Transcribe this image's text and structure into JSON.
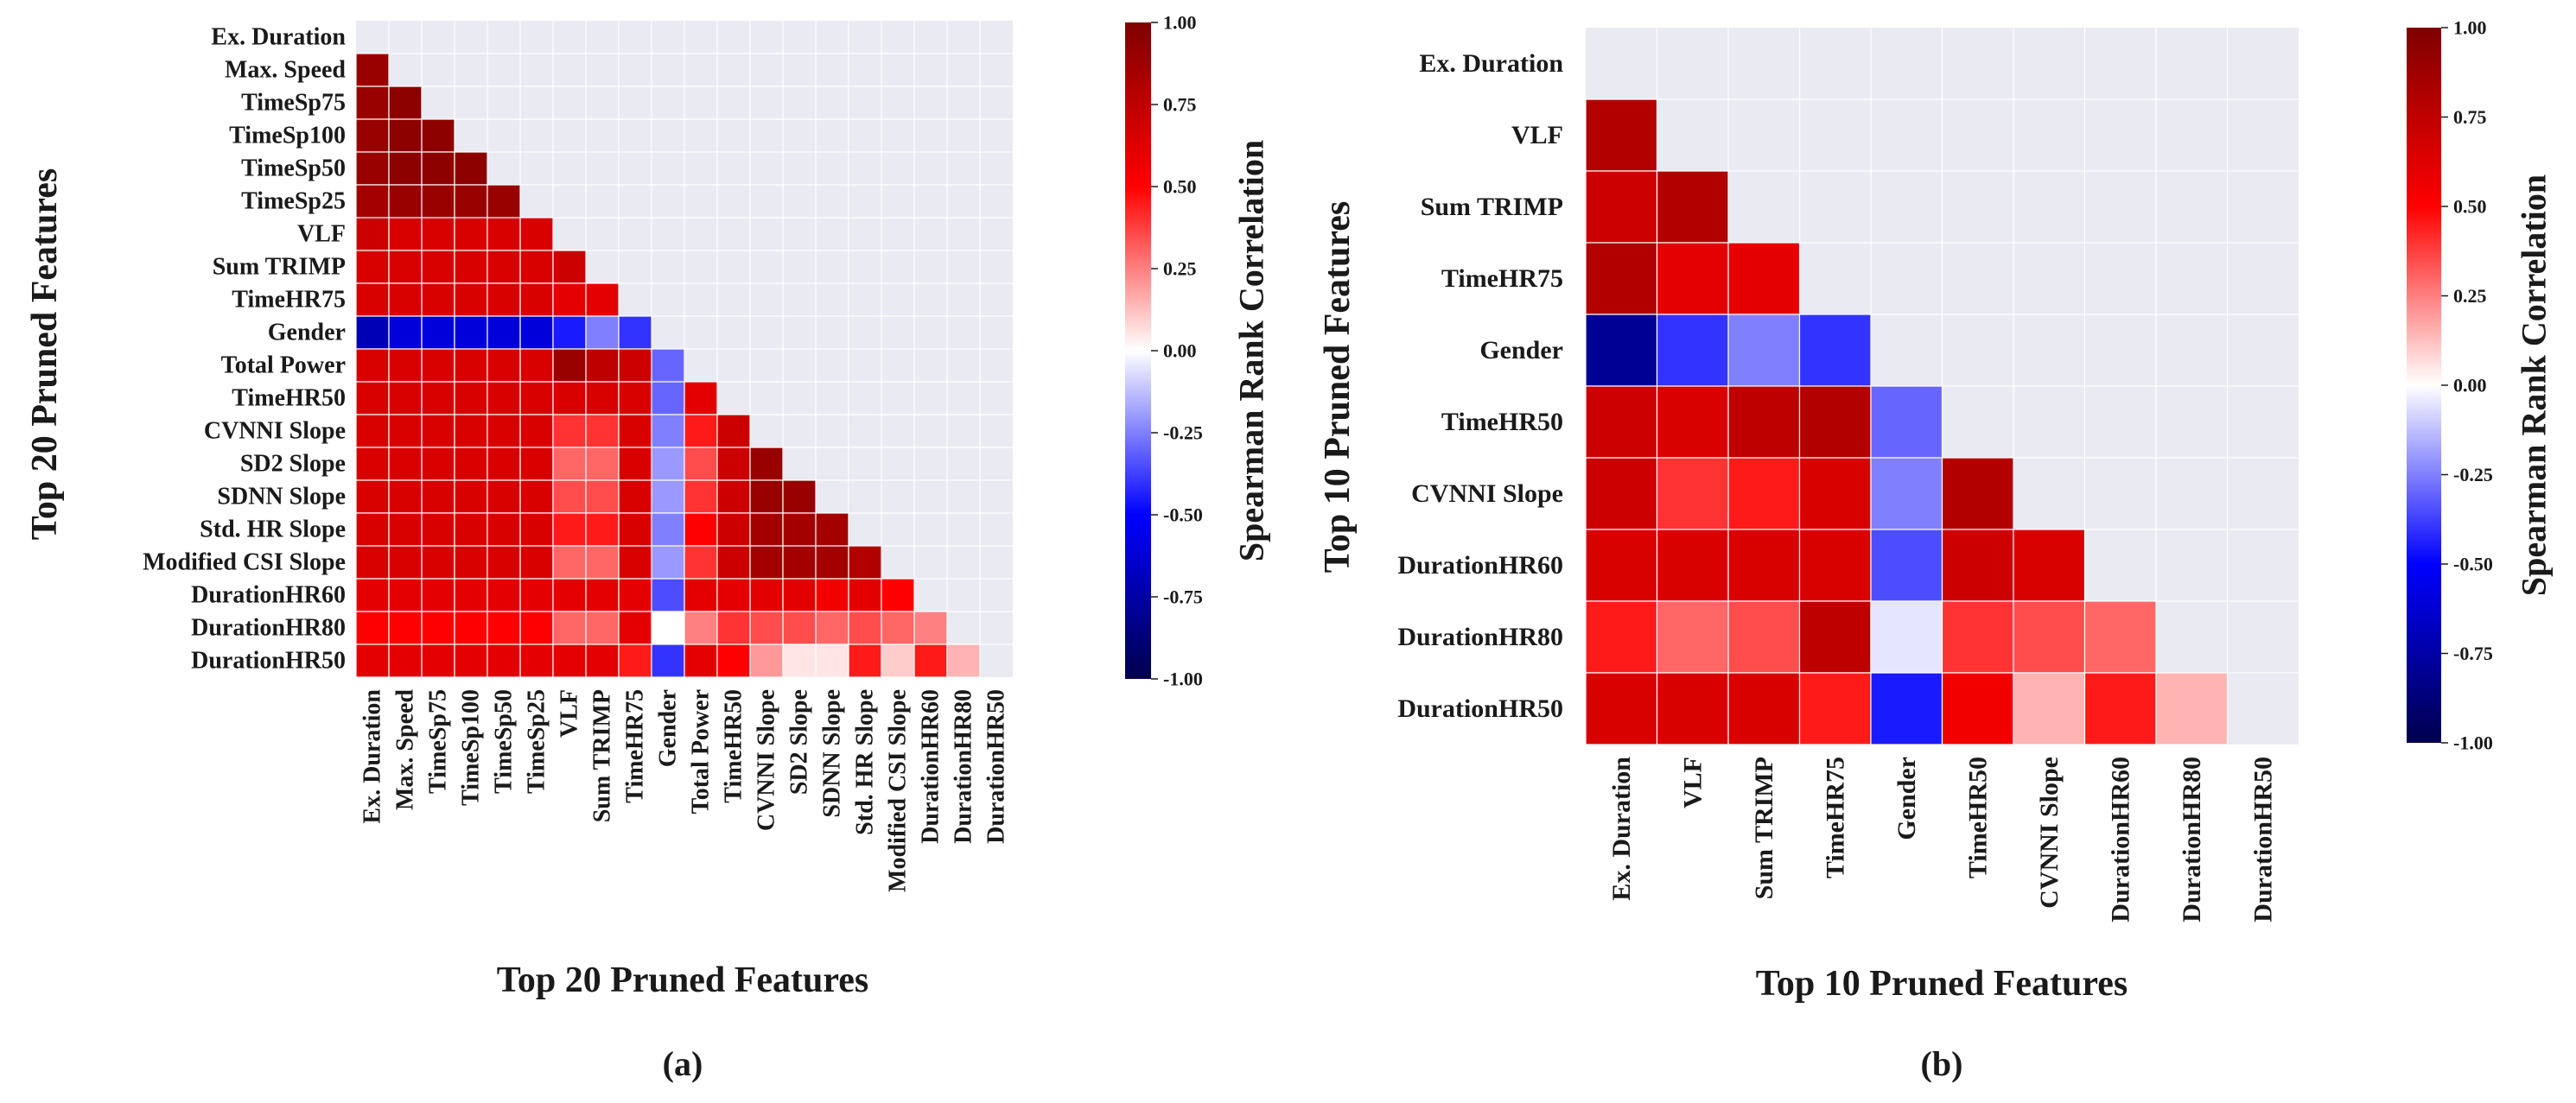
{
  "chart_data": [
    {
      "type": "heatmap",
      "panel_label": "(a)",
      "xlabel": "Top 20 Pruned Features",
      "ylabel": "Top 20 Pruned Features",
      "colorbar_label": "Spearman Rank Correlation",
      "colorbar_range": [
        -1.0,
        1.0
      ],
      "colorbar_ticks": [
        "1.00",
        "0.75",
        "0.50",
        "0.25",
        "0.00",
        "-0.25",
        "-0.50",
        "-0.75",
        "-1.00"
      ],
      "mask": "lower-triangle (diagonal hidden)",
      "features": [
        "Ex. Duration",
        "Max. Speed",
        "TimeSp75",
        "TimeSp100",
        "TimeSp50",
        "TimeSp25",
        "VLF",
        "Sum TRIMP",
        "TimeHR75",
        "Gender",
        "Total Power",
        "TimeHR50",
        "CVNNI Slope",
        "SD2 Slope",
        "SDNN Slope",
        "Std. HR Slope",
        "Modified CSI Slope",
        "DurationHR60",
        "DurationHR80",
        "DurationHR50"
      ],
      "matrix": [
        [],
        [
          0.9
        ],
        [
          0.9,
          0.95
        ],
        [
          0.9,
          0.95,
          0.95
        ],
        [
          0.9,
          0.95,
          0.95,
          0.95
        ],
        [
          0.85,
          0.9,
          0.9,
          0.9,
          0.9
        ],
        [
          0.7,
          0.65,
          0.65,
          0.65,
          0.65,
          0.65
        ],
        [
          0.65,
          0.65,
          0.65,
          0.65,
          0.65,
          0.65,
          0.7
        ],
        [
          0.65,
          0.65,
          0.65,
          0.65,
          0.65,
          0.65,
          0.6,
          0.6
        ],
        [
          -0.7,
          -0.6,
          -0.6,
          -0.6,
          -0.6,
          -0.6,
          -0.45,
          -0.25,
          -0.4
        ],
        [
          0.65,
          0.65,
          0.65,
          0.65,
          0.65,
          0.65,
          0.9,
          0.75,
          0.7,
          -0.3
        ],
        [
          0.65,
          0.65,
          0.65,
          0.65,
          0.65,
          0.65,
          0.65,
          0.65,
          0.65,
          -0.3,
          0.6
        ],
        [
          0.65,
          0.65,
          0.65,
          0.65,
          0.65,
          0.65,
          0.4,
          0.4,
          0.65,
          -0.25,
          0.45,
          0.7
        ],
        [
          0.65,
          0.65,
          0.65,
          0.65,
          0.65,
          0.65,
          0.3,
          0.3,
          0.65,
          -0.2,
          0.35,
          0.7,
          0.9
        ],
        [
          0.65,
          0.65,
          0.65,
          0.65,
          0.65,
          0.65,
          0.35,
          0.35,
          0.65,
          -0.2,
          0.4,
          0.7,
          0.9,
          0.9
        ],
        [
          0.65,
          0.65,
          0.65,
          0.65,
          0.65,
          0.65,
          0.45,
          0.45,
          0.65,
          -0.25,
          0.5,
          0.7,
          0.85,
          0.85,
          0.85
        ],
        [
          0.65,
          0.65,
          0.65,
          0.65,
          0.65,
          0.65,
          0.3,
          0.3,
          0.65,
          -0.2,
          0.4,
          0.7,
          0.85,
          0.85,
          0.85,
          0.8
        ],
        [
          0.6,
          0.6,
          0.6,
          0.6,
          0.6,
          0.6,
          0.6,
          0.6,
          0.6,
          -0.35,
          0.6,
          0.6,
          0.6,
          0.6,
          0.55,
          0.6,
          0.5
        ],
        [
          0.5,
          0.5,
          0.5,
          0.5,
          0.5,
          0.5,
          0.3,
          0.3,
          0.6,
          0.0,
          0.25,
          0.4,
          0.35,
          0.35,
          0.3,
          0.35,
          0.3,
          0.25
        ],
        [
          0.6,
          0.6,
          0.6,
          0.6,
          0.6,
          0.6,
          0.6,
          0.6,
          0.45,
          -0.4,
          0.6,
          0.5,
          0.2,
          0.05,
          0.05,
          0.45,
          0.1,
          0.45,
          0.15
        ]
      ]
    },
    {
      "type": "heatmap",
      "panel_label": "(b)",
      "xlabel": "Top 10 Pruned Features",
      "ylabel": "Top 10 Pruned Features",
      "colorbar_label": "Spearman Rank Correlation",
      "colorbar_range": [
        -1.0,
        1.0
      ],
      "colorbar_ticks": [
        "1.00",
        "0.75",
        "0.50",
        "0.25",
        "0.00",
        "-0.25",
        "-0.50",
        "-0.75",
        "-1.00"
      ],
      "mask": "lower-triangle (diagonal hidden)",
      "features": [
        "Ex. Duration",
        "VLF",
        "Sum TRIMP",
        "TimeHR75",
        "Gender",
        "TimeHR50",
        "CVNNI Slope",
        "DurationHR60",
        "DurationHR80",
        "DurationHR50"
      ],
      "matrix": [
        [],
        [
          0.8
        ],
        [
          0.7,
          0.8
        ],
        [
          0.8,
          0.6,
          0.6
        ],
        [
          -0.8,
          -0.4,
          -0.25,
          -0.4
        ],
        [
          0.7,
          0.65,
          0.75,
          0.8,
          -0.3
        ],
        [
          0.7,
          0.4,
          0.45,
          0.65,
          -0.25,
          0.8
        ],
        [
          0.65,
          0.65,
          0.65,
          0.65,
          -0.35,
          0.7,
          0.65
        ],
        [
          0.45,
          0.3,
          0.35,
          0.75,
          -0.05,
          0.4,
          0.35,
          0.3
        ],
        [
          0.65,
          0.65,
          0.65,
          0.45,
          -0.45,
          0.55,
          0.15,
          0.45,
          0.15
        ]
      ]
    }
  ]
}
